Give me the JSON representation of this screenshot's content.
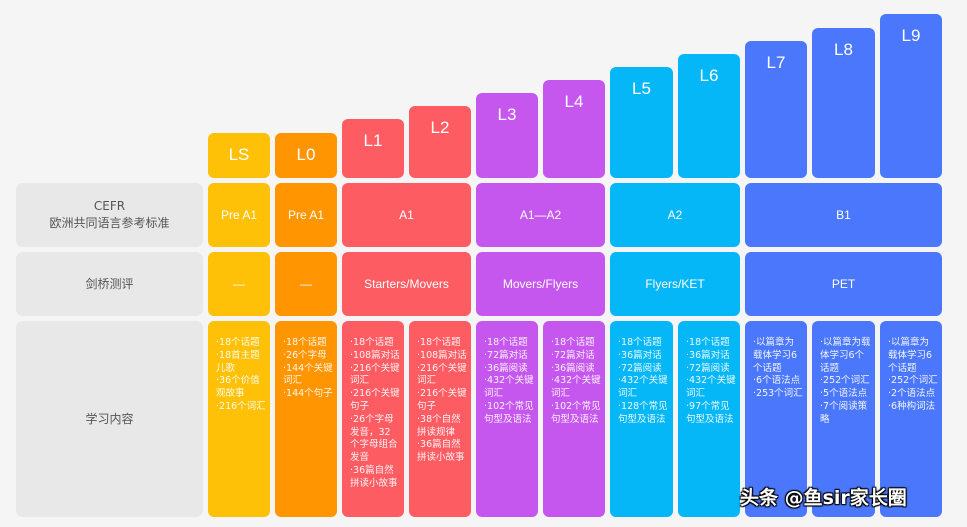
{
  "colors": {
    "yellow": "#fec107",
    "orange": "#ff9500",
    "red": "#fd5c63",
    "purple": "#c657ee",
    "cyan": "#05b7f7",
    "blue": "#4a77fb",
    "label_bg": "#e8e8e8",
    "page_bg": "#f5f5f6"
  },
  "row_labels": {
    "cefr_line1": "CEFR",
    "cefr_line2": "欧洲共同语言参考标准",
    "cambridge": "剑桥测评",
    "content": "学习内容"
  },
  "levels": [
    {
      "name": "LS",
      "color": "#fec107",
      "content": [
        "·18个话题",
        "·18首主题儿歌",
        "·36个价值观故事",
        "·216个词汇"
      ]
    },
    {
      "name": "L0",
      "color": "#ff9500",
      "content": [
        "·18个话题",
        "·26个字母",
        "·144个关键词汇",
        "·144个句子"
      ]
    },
    {
      "name": "L1",
      "color": "#fd5c63",
      "content": [
        "·18个话题",
        "·108篇对话",
        "·216个关键词汇",
        "·216个关键句子",
        "·26个字母发音，32个字母组合发音",
        "·36篇自然拼读小故事"
      ]
    },
    {
      "name": "L2",
      "color": "#fd5c63",
      "content": [
        "·18个话题",
        "·108篇对话",
        "·216个关键词汇",
        "·216个关键句子",
        "·38个自然拼读规律",
        "·36篇自然拼读小故事"
      ]
    },
    {
      "name": "L3",
      "color": "#c657ee",
      "content": [
        "·18个话题",
        "·72篇对话",
        "·36篇阅读",
        "·432个关键词汇",
        "·102个常见句型及语法"
      ]
    },
    {
      "name": "L4",
      "color": "#c657ee",
      "content": [
        "·18个话题",
        "·72篇对话",
        "·36篇阅读",
        "·432个关键词汇",
        "·102个常见句型及语法"
      ]
    },
    {
      "name": "L5",
      "color": "#05b7f7",
      "content": [
        "·18个话题",
        "·36篇对话",
        "·72篇阅读",
        "·432个关键词汇",
        "·128个常见句型及语法"
      ]
    },
    {
      "name": "L6",
      "color": "#05b7f7",
      "content": [
        "·18个话题",
        "·36篇对话",
        "·72篇阅读",
        "·432个关键词汇",
        "·97个常见句型及语法"
      ]
    },
    {
      "name": "L7",
      "color": "#4a77fb",
      "content": [
        "·以篇章为载体学习6个话题",
        "·6个语法点",
        "·253个词汇"
      ]
    },
    {
      "name": "L8",
      "color": "#4a77fb",
      "content": [
        "·以篇章为载体学习6个话题",
        "·252个词汇",
        "·5个语法点",
        "·7个阅读策略"
      ]
    },
    {
      "name": "L9",
      "color": "#4a77fb",
      "content": [
        "·以篇章为载体学习6个话题",
        "·252个词汇",
        "·2个语法点",
        "·6种构词法"
      ]
    }
  ],
  "cefr_groups": [
    {
      "label": "Pre A1",
      "color": "#fec107"
    },
    {
      "label": "Pre A1",
      "color": "#ff9500"
    },
    {
      "label": "A1",
      "color": "#fd5c63"
    },
    {
      "label": "A1—A2",
      "color": "#c657ee"
    },
    {
      "label": "A2",
      "color": "#05b7f7"
    },
    {
      "label": "B1",
      "color": "#4a77fb"
    }
  ],
  "cambridge_groups": [
    {
      "label": "—",
      "color": "#fec107"
    },
    {
      "label": "—",
      "color": "#ff9500"
    },
    {
      "label": "Starters/Movers",
      "color": "#fd5c63"
    },
    {
      "label": "Movers/Flyers",
      "color": "#c657ee"
    },
    {
      "label": "Flyers/KET",
      "color": "#05b7f7"
    },
    {
      "label": "PET",
      "color": "#4a77fb"
    }
  ],
  "watermark": "头条 @鱼sir家长圈"
}
